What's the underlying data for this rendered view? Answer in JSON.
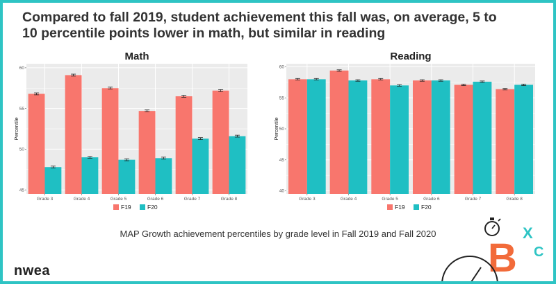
{
  "headline": "Compared to fall 2019, student achievement this fall was, on average, 5 to 10 percentile points lower in math, but similar in reading",
  "caption": "MAP Growth achievement percentiles by grade level in Fall 2019 and Fall 2020",
  "logo_text": "nwea",
  "brand_letters": {
    "big": "B",
    "small_top": "X",
    "small_bottom": "C"
  },
  "colors": {
    "F19": "#f8766d",
    "F20": "#1fbfc3",
    "border": "#2ec4c4",
    "panel_bg": "#ebebeb",
    "brand_orange": "#f26b3a",
    "brand_teal": "#2ec4c4"
  },
  "chart_data": [
    {
      "type": "bar",
      "title": "Math",
      "ylabel": "Percentile",
      "xlabel": "",
      "ylim": [
        44.5,
        60.5
      ],
      "yticks": [
        45,
        50,
        55,
        60
      ],
      "ytick_labels": [
        "45",
        "50",
        "55",
        "60"
      ],
      "categories": [
        "Grade 3",
        "Grade 4",
        "Grade 5",
        "Grade 6",
        "Grade 7",
        "Grade 8"
      ],
      "series": [
        {
          "name": "F19",
          "values": [
            56.8,
            59.1,
            57.5,
            54.7,
            56.5,
            57.2
          ],
          "error": [
            0.12,
            0.12,
            0.12,
            0.12,
            0.12,
            0.12
          ]
        },
        {
          "name": "F20",
          "values": [
            47.8,
            49.0,
            48.7,
            48.9,
            51.3,
            51.6
          ],
          "error": [
            0.12,
            0.12,
            0.12,
            0.12,
            0.12,
            0.12
          ]
        }
      ],
      "legend": "bottom",
      "grid": true
    },
    {
      "type": "bar",
      "title": "Reading",
      "ylabel": "Percentile",
      "xlabel": "",
      "ylim": [
        39.5,
        60.5
      ],
      "yticks": [
        40,
        45,
        50,
        55,
        60
      ],
      "ytick_labels": [
        "40",
        "45",
        "50",
        "55",
        "60"
      ],
      "categories": [
        "Grade 3",
        "Grade 4",
        "Grade 5",
        "Grade 6",
        "Grade 7",
        "Grade 8"
      ],
      "series": [
        {
          "name": "F19",
          "values": [
            58.0,
            59.4,
            58.0,
            57.8,
            57.1,
            56.4
          ],
          "error": [
            0.12,
            0.12,
            0.12,
            0.12,
            0.12,
            0.12
          ]
        },
        {
          "name": "F20",
          "values": [
            58.0,
            57.8,
            57.0,
            57.8,
            57.6,
            57.1
          ],
          "error": [
            0.12,
            0.12,
            0.12,
            0.12,
            0.12,
            0.12
          ]
        }
      ],
      "legend": "bottom",
      "grid": true
    }
  ]
}
